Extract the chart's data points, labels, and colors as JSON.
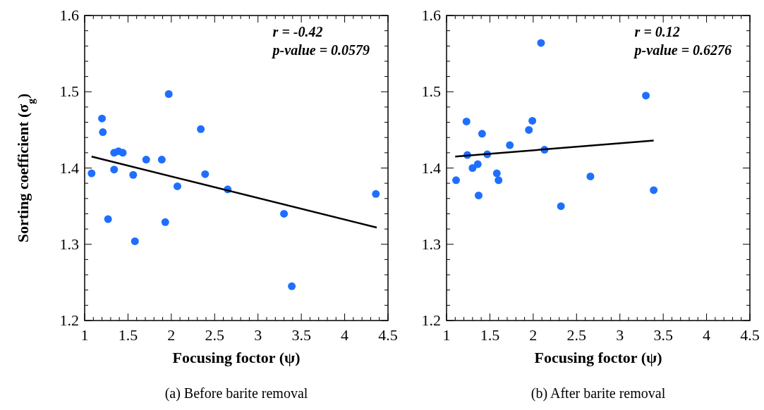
{
  "chart_data": [
    {
      "type": "scatter",
      "title": "(a)  Before barite removal",
      "xlabel": "Focusing foctor (ψ)",
      "ylabel": "Sorting coefficient (σ$_{g}$)",
      "annotations": [
        "r = -0.42",
        "p-value = 0.0579"
      ],
      "xlim": [
        1,
        4.5
      ],
      "xticks": [
        1,
        1.5,
        2,
        2.5,
        3,
        3.5,
        4,
        4.5
      ],
      "ylim": [
        1.2,
        1.6
      ],
      "yticks": [
        1.2,
        1.3,
        1.4,
        1.5,
        1.6
      ],
      "grid": false,
      "series": [
        {
          "marker": "circle",
          "color": "#1f6fff",
          "x": [
            1.08,
            1.2,
            1.21,
            1.27,
            1.34,
            1.34,
            1.39,
            1.44,
            1.56,
            1.58,
            1.71,
            1.89,
            1.93,
            1.97,
            2.07,
            2.34,
            2.39,
            2.65,
            3.3,
            3.39,
            4.36
          ],
          "values": [
            1.393,
            1.465,
            1.447,
            1.333,
            1.42,
            1.398,
            1.422,
            1.42,
            1.391,
            1.304,
            1.411,
            1.411,
            1.329,
            1.497,
            1.376,
            1.451,
            1.392,
            1.372,
            1.34,
            1.245,
            1.366
          ]
        },
        {
          "type": "line",
          "color": "#000000",
          "x": [
            1.08,
            4.37
          ],
          "values": [
            1.415,
            1.322
          ]
        }
      ]
    },
    {
      "type": "scatter",
      "title": "(b)  After barite removal",
      "xlabel": "Focusing foctor (ψ)",
      "annotations": [
        "r = 0.12",
        "p-value = 0.6276"
      ],
      "xlim": [
        1,
        4.5
      ],
      "xticks": [
        1,
        1.5,
        2,
        2.5,
        3,
        3.5,
        4,
        4.5
      ],
      "ylim": [
        1.2,
        1.6
      ],
      "yticks": [
        1.2,
        1.3,
        1.4,
        1.5,
        1.6
      ],
      "grid": false,
      "series": [
        {
          "marker": "circle",
          "color": "#1f6fff",
          "x": [
            1.11,
            1.23,
            1.24,
            1.3,
            1.36,
            1.37,
            1.41,
            1.47,
            1.58,
            1.6,
            1.73,
            1.95,
            1.99,
            2.09,
            2.13,
            2.32,
            2.66,
            3.3,
            3.39
          ],
          "values": [
            1.384,
            1.461,
            1.417,
            1.4,
            1.405,
            1.364,
            1.445,
            1.418,
            1.393,
            1.384,
            1.43,
            1.45,
            1.462,
            1.564,
            1.424,
            1.35,
            1.389,
            1.495,
            1.371
          ]
        },
        {
          "type": "line",
          "color": "#000000",
          "x": [
            1.1,
            3.39
          ],
          "values": [
            1.415,
            1.436
          ]
        }
      ]
    }
  ]
}
